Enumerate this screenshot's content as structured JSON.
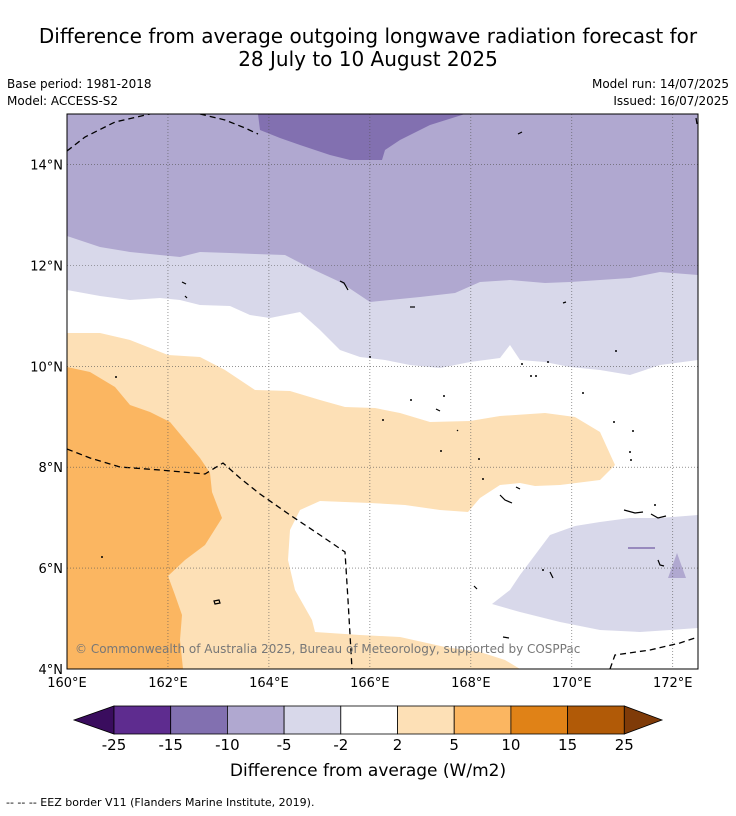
{
  "title": {
    "line1": "Difference from average outgoing longwave radiation forecast for",
    "line2": "28 July to 10 August 2025"
  },
  "meta": {
    "base_period": "Base period: 1981-2018",
    "model": "Model: ACCESS-S2",
    "model_run": "Model run: 14/07/2025",
    "issued": "Issued: 16/07/2025"
  },
  "map": {
    "lon_ticks": [
      "160°E",
      "162°E",
      "164°E",
      "166°E",
      "168°E",
      "170°E",
      "172°E"
    ],
    "lat_ticks": [
      "14°N",
      "12°N",
      "10°N",
      "8°N",
      "6°N",
      "4°N"
    ],
    "lon_range": [
      160,
      172.5
    ],
    "lat_range": [
      4,
      15
    ],
    "copyright": "© Commonwealth of Australia 2025, Bureau of Meteorology, supported by COSPPac"
  },
  "colorbar": {
    "labels": [
      "-25",
      "-15",
      "-10",
      "-5",
      "-2",
      "2",
      "5",
      "10",
      "15",
      "25"
    ],
    "colors": [
      "#5e2c8f",
      "#8270b0",
      "#b0a8d0",
      "#d8d8ea",
      "#ffffff",
      "#fde0b6",
      "#fbb661",
      "#e08217",
      "#b15a07"
    ],
    "low_extend": "#3a0d5e",
    "high_extend": "#7f3b08",
    "title": "Difference from average (W/m2)"
  },
  "footnote": "--  --  -- EEZ border V11 (Flanders Marine Institute, 2019)."
}
